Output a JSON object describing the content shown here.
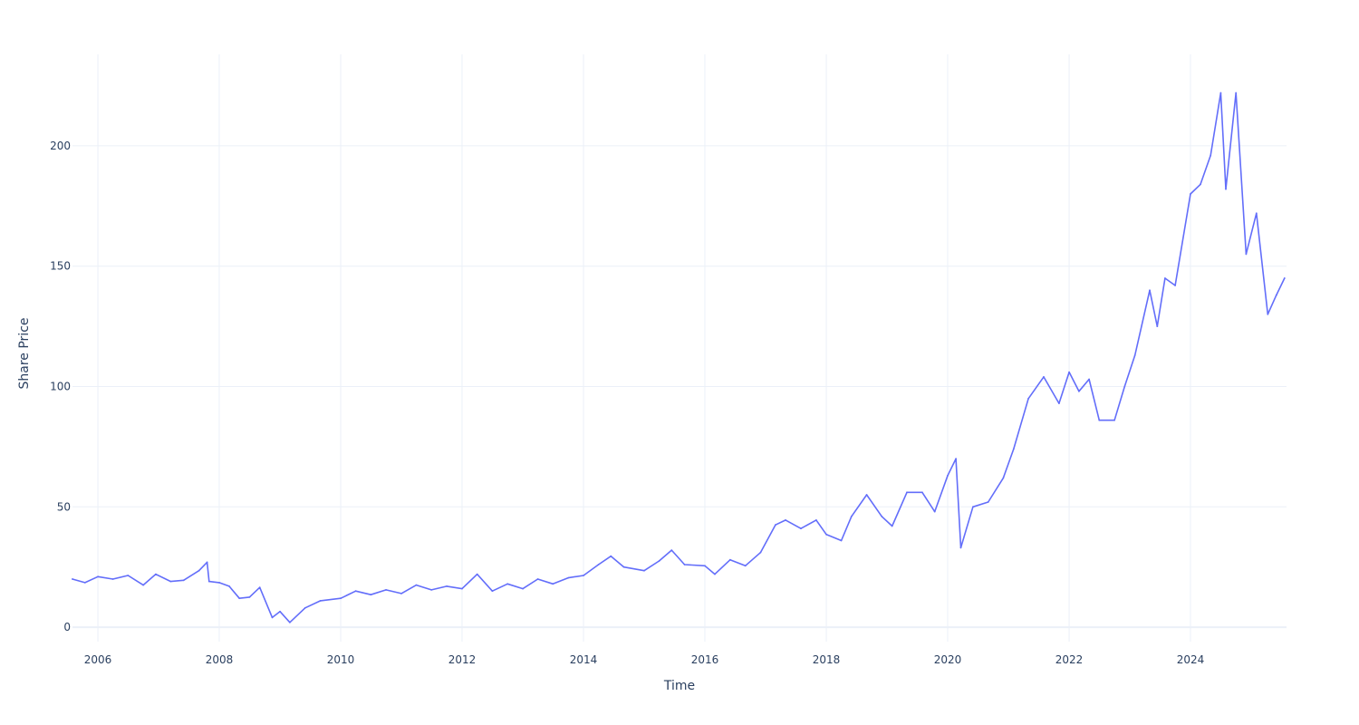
{
  "chart_data": {
    "type": "line",
    "title": "",
    "xlabel": "Time",
    "ylabel": "Share Price",
    "x_axis_type": "date",
    "xlim": [
      "2005-08-01",
      "2025-08-01"
    ],
    "ylim": [
      -6,
      238
    ],
    "x_ticks": [
      "2006",
      "2008",
      "2010",
      "2012",
      "2014",
      "2016",
      "2018",
      "2020",
      "2022",
      "2024"
    ],
    "y_ticks": [
      0,
      50,
      100,
      150,
      200
    ],
    "grid": true,
    "legend": "none",
    "series": [
      {
        "color": "#636efa",
        "points": [
          [
            "2005-08-01",
            20
          ],
          [
            "2005-10-15",
            18.5
          ],
          [
            "2006-01-01",
            21
          ],
          [
            "2006-04-01",
            20
          ],
          [
            "2006-07-01",
            21.5
          ],
          [
            "2006-10-01",
            17.5
          ],
          [
            "2006-12-15",
            22
          ],
          [
            "2007-03-15",
            19
          ],
          [
            "2007-06-01",
            19.5
          ],
          [
            "2007-09-01",
            23.5
          ],
          [
            "2007-10-20",
            27
          ],
          [
            "2007-11-01",
            19
          ],
          [
            "2008-01-01",
            18.5
          ],
          [
            "2008-03-01",
            17
          ],
          [
            "2008-05-01",
            12
          ],
          [
            "2008-07-01",
            12.5
          ],
          [
            "2008-09-01",
            16.5
          ],
          [
            "2008-11-15",
            4
          ],
          [
            "2009-01-01",
            6.5
          ],
          [
            "2009-03-01",
            2
          ],
          [
            "2009-06-01",
            8
          ],
          [
            "2009-09-01",
            11
          ],
          [
            "2010-01-01",
            12
          ],
          [
            "2010-04-01",
            15
          ],
          [
            "2010-07-01",
            13.5
          ],
          [
            "2010-10-01",
            15.5
          ],
          [
            "2011-01-01",
            14
          ],
          [
            "2011-04-01",
            17.5
          ],
          [
            "2011-07-01",
            15.5
          ],
          [
            "2011-10-01",
            17
          ],
          [
            "2012-01-01",
            16
          ],
          [
            "2012-04-01",
            22
          ],
          [
            "2012-07-01",
            15
          ],
          [
            "2012-10-01",
            18
          ],
          [
            "2013-01-01",
            16
          ],
          [
            "2013-04-01",
            20
          ],
          [
            "2013-07-01",
            18
          ],
          [
            "2013-10-01",
            20.5
          ],
          [
            "2014-01-01",
            21.5
          ],
          [
            "2014-04-01",
            26
          ],
          [
            "2014-06-15",
            29.5
          ],
          [
            "2014-09-01",
            25
          ],
          [
            "2015-01-01",
            23.5
          ],
          [
            "2015-04-01",
            27.5
          ],
          [
            "2015-06-15",
            32
          ],
          [
            "2015-09-01",
            26
          ],
          [
            "2016-01-01",
            25.5
          ],
          [
            "2016-03-01",
            22
          ],
          [
            "2016-06-01",
            28
          ],
          [
            "2016-09-01",
            25.5
          ],
          [
            "2016-12-01",
            31
          ],
          [
            "2017-03-01",
            42.5
          ],
          [
            "2017-05-01",
            44.5
          ],
          [
            "2017-08-01",
            41
          ],
          [
            "2017-11-01",
            44.5
          ],
          [
            "2018-01-01",
            38.5
          ],
          [
            "2018-04-01",
            36
          ],
          [
            "2018-06-01",
            46
          ],
          [
            "2018-09-01",
            55
          ],
          [
            "2018-12-01",
            46
          ],
          [
            "2019-02-01",
            42
          ],
          [
            "2019-05-01",
            56
          ],
          [
            "2019-08-01",
            56
          ],
          [
            "2019-10-15",
            48
          ],
          [
            "2020-01-01",
            63
          ],
          [
            "2020-02-20",
            70
          ],
          [
            "2020-03-20",
            33
          ],
          [
            "2020-06-01",
            50
          ],
          [
            "2020-09-01",
            52
          ],
          [
            "2020-12-01",
            62
          ],
          [
            "2021-02-01",
            74
          ],
          [
            "2021-05-01",
            95
          ],
          [
            "2021-08-01",
            104
          ],
          [
            "2021-11-01",
            93
          ],
          [
            "2022-01-01",
            106
          ],
          [
            "2022-03-01",
            98
          ],
          [
            "2022-05-01",
            103
          ],
          [
            "2022-07-01",
            86
          ],
          [
            "2022-10-01",
            86
          ],
          [
            "2022-12-01",
            100
          ],
          [
            "2023-02-01",
            113
          ],
          [
            "2023-05-01",
            140
          ],
          [
            "2023-06-15",
            125
          ],
          [
            "2023-08-01",
            145
          ],
          [
            "2023-10-01",
            142
          ],
          [
            "2024-01-01",
            180
          ],
          [
            "2024-03-01",
            184
          ],
          [
            "2024-05-01",
            196
          ],
          [
            "2024-07-01",
            222
          ],
          [
            "2024-08-01",
            182
          ],
          [
            "2024-10-01",
            222
          ],
          [
            "2024-12-01",
            155
          ],
          [
            "2025-02-01",
            172
          ],
          [
            "2025-04-10",
            130
          ],
          [
            "2025-06-01",
            138
          ],
          [
            "2025-07-20",
            145
          ]
        ]
      }
    ]
  }
}
